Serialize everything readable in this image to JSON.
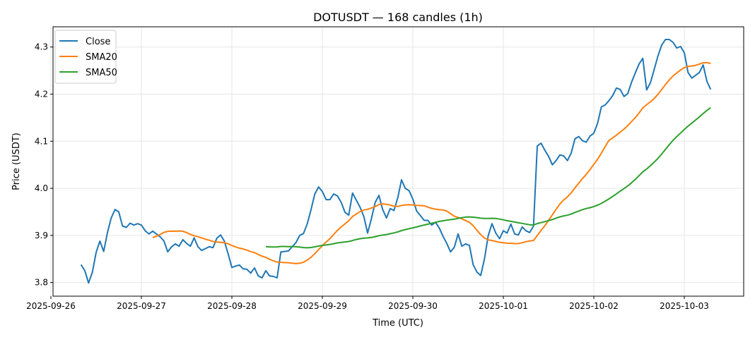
{
  "chart_data": {
    "type": "line",
    "title": "DOTUSDT — 168 candles (1h)",
    "xlabel": "Time (UTC)",
    "ylabel": "Price (USDT)",
    "start_time": "2025-09-26 08:00",
    "interval_hours": 1,
    "x_tick_labels": [
      "2025-09-26",
      "2025-09-27",
      "2025-09-28",
      "2025-09-29",
      "2025-09-30",
      "2025-10-01",
      "2025-10-02",
      "2025-10-03"
    ],
    "xlim_hours_from_2025_09_26": [
      0.2,
      175.2
    ],
    "y_ticks": [
      3.8,
      3.9,
      4.0,
      4.1,
      4.2,
      4.3
    ],
    "y_tick_labels": [
      "3.8",
      "3.9",
      "4.0",
      "4.1",
      "4.2",
      "4.3"
    ],
    "ylim": [
      3.771,
      4.343
    ],
    "grid": true,
    "legend_position": "top-left",
    "series": [
      {
        "name": "Close",
        "color": "#1f77b4",
        "values": [
          3.838,
          3.825,
          3.799,
          3.822,
          3.864,
          3.888,
          3.866,
          3.906,
          3.937,
          3.955,
          3.95,
          3.92,
          3.917,
          3.926,
          3.922,
          3.925,
          3.922,
          3.91,
          3.903,
          3.909,
          3.903,
          3.897,
          3.888,
          3.865,
          3.876,
          3.882,
          3.877,
          3.891,
          3.883,
          3.877,
          3.895,
          3.876,
          3.868,
          3.872,
          3.876,
          3.874,
          3.894,
          3.901,
          3.888,
          3.861,
          3.832,
          3.835,
          3.837,
          3.829,
          3.828,
          3.82,
          3.831,
          3.814,
          3.81,
          3.825,
          3.814,
          3.813,
          3.81,
          3.865,
          3.866,
          3.867,
          3.876,
          3.885,
          3.9,
          3.904,
          3.925,
          3.955,
          3.988,
          4.003,
          3.993,
          3.976,
          3.976,
          3.988,
          3.984,
          3.97,
          3.949,
          3.943,
          3.99,
          3.975,
          3.96,
          3.94,
          3.905,
          3.935,
          3.97,
          3.985,
          3.955,
          3.937,
          3.957,
          3.953,
          3.98,
          4.018,
          4.0,
          3.995,
          3.977,
          3.952,
          3.942,
          3.932,
          3.932,
          3.922,
          3.928,
          3.916,
          3.898,
          3.883,
          3.865,
          3.875,
          3.903,
          3.877,
          3.882,
          3.879,
          3.838,
          3.822,
          3.815,
          3.85,
          3.9,
          3.925,
          3.905,
          3.893,
          3.91,
          3.905,
          3.924,
          3.903,
          3.901,
          3.918,
          3.91,
          3.906,
          3.92,
          4.09,
          4.096,
          4.081,
          4.068,
          4.05,
          4.059,
          4.071,
          4.069,
          4.059,
          4.075,
          4.105,
          4.11,
          4.101,
          4.098,
          4.111,
          4.117,
          4.138,
          4.173,
          4.177,
          4.186,
          4.197,
          4.213,
          4.21,
          4.195,
          4.201,
          4.225,
          4.245,
          4.264,
          4.276,
          4.209,
          4.224,
          4.252,
          4.281,
          4.304,
          4.316,
          4.316,
          4.31,
          4.298,
          4.301,
          4.288,
          4.246,
          4.234,
          4.24,
          4.246,
          4.262,
          4.227,
          4.21
        ]
      },
      {
        "name": "SMA20",
        "color": "#ff7f0e",
        "window": 20
      },
      {
        "name": "SMA50",
        "color": "#2ca02c",
        "window": 50
      }
    ]
  }
}
